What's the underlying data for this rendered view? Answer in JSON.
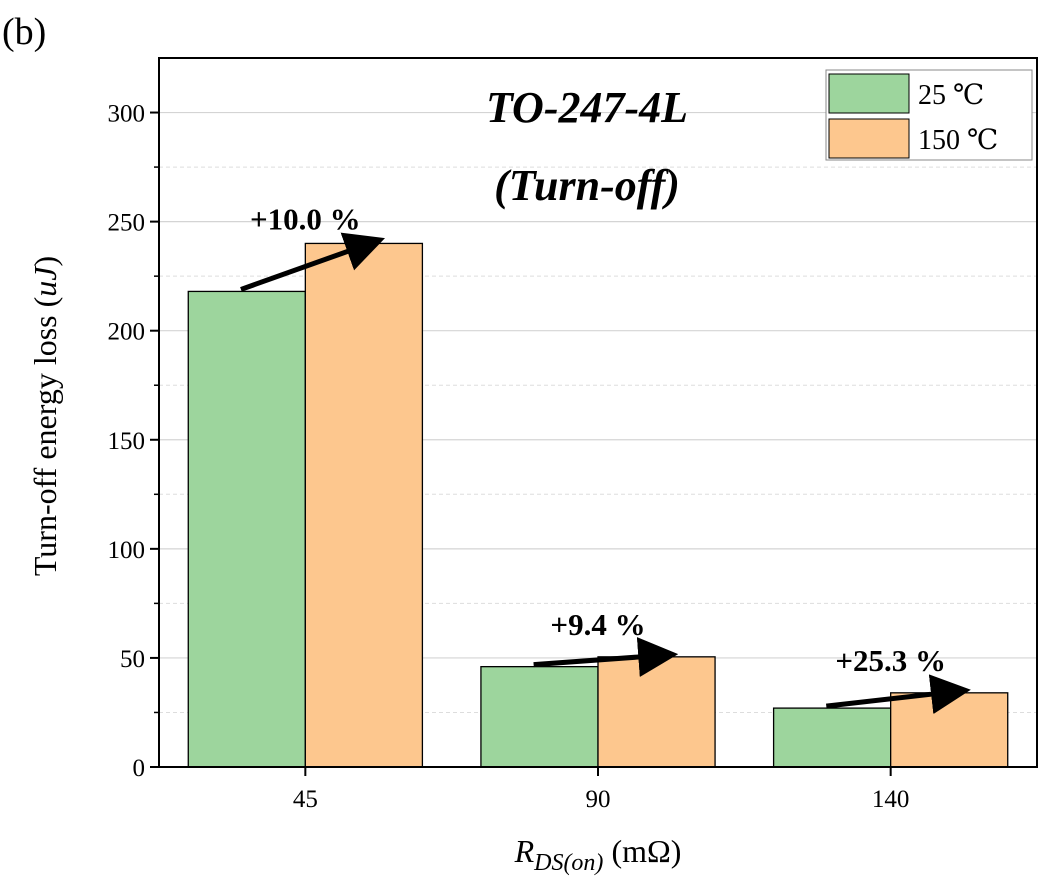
{
  "chart_data": {
    "type": "bar",
    "panel_label": "(b)",
    "title_line1": "TO-247-4L",
    "title_line2": "(Turn-off)",
    "xlabel_main": "R",
    "xlabel_sub": "DS(on)",
    "xlabel_unit": "(mΩ)",
    "ylabel_main": "Turn-off energy loss (",
    "ylabel_unit": "uJ",
    "ylabel_close": ")",
    "categories": [
      "45",
      "90",
      "140"
    ],
    "series": [
      {
        "name": "25 ℃",
        "color": "#9dd59d",
        "values": [
          218,
          46,
          27
        ]
      },
      {
        "name": "150 ℃",
        "color": "#fdc78e",
        "values": [
          240,
          50.5,
          34
        ]
      }
    ],
    "annotations": [
      "+10.0 %",
      "+9.4 %",
      "+25.3 %"
    ],
    "ylim": [
      0,
      325
    ],
    "yticks": [
      0,
      50,
      100,
      150,
      200,
      250,
      300
    ],
    "grid": true,
    "legend_position": "top-right"
  }
}
